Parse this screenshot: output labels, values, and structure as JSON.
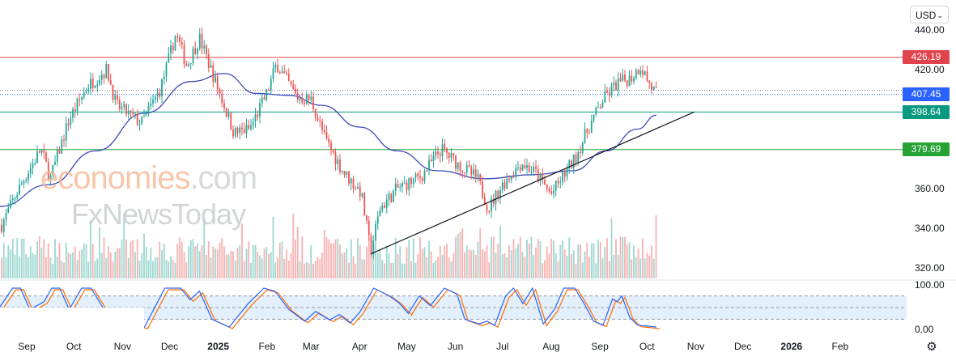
{
  "header": {
    "currency": "USD"
  },
  "watermark": {
    "brand_top": "economies",
    "brand_top_suffix": ".com",
    "brand_bottom": "FxNewsToday"
  },
  "price_labels": [
    {
      "value": "426.19",
      "color": "#e0434b"
    },
    {
      "value": "407.45",
      "color": "#2962ff"
    },
    {
      "value": "398.64",
      "color": "#089981"
    },
    {
      "value": "379.69",
      "color": "#26a334"
    }
  ],
  "y_axis_ticks": [
    "440.00",
    "420.00",
    "360.00",
    "340.00",
    "320.00"
  ],
  "osc_axis_ticks": [
    "100.00",
    "0.00"
  ],
  "x_axis_ticks": [
    {
      "label": "Sep",
      "bold": false
    },
    {
      "label": "Oct",
      "bold": false
    },
    {
      "label": "Nov",
      "bold": false
    },
    {
      "label": "Dec",
      "bold": false
    },
    {
      "label": "2025",
      "bold": true
    },
    {
      "label": "Feb",
      "bold": false
    },
    {
      "label": "Mar",
      "bold": false
    },
    {
      "label": "Apr",
      "bold": false
    },
    {
      "label": "May",
      "bold": false
    },
    {
      "label": "Jun",
      "bold": false
    },
    {
      "label": "Jul",
      "bold": false
    },
    {
      "label": "Aug",
      "bold": false
    },
    {
      "label": "Sep",
      "bold": false
    },
    {
      "label": "Oct",
      "bold": false
    },
    {
      "label": "Nov",
      "bold": false
    },
    {
      "label": "Dec",
      "bold": false
    },
    {
      "label": "2026",
      "bold": true
    },
    {
      "label": "Feb",
      "bold": false
    }
  ],
  "colors": {
    "up": "#26a69a",
    "down": "#ef5350",
    "ma": "#3f48b8",
    "resistance": "#e0434b",
    "support1": "#089981",
    "support2": "#26a334",
    "trendline": "#131722",
    "stoch_k": "#2962ff",
    "stoch_d": "#ff6d00",
    "osc_band": "#e3f0fb"
  },
  "chart_data": {
    "type": "candlestick",
    "price_axis": {
      "ylim": [
        315,
        448
      ],
      "ticks": [
        320,
        340,
        360,
        420,
        440
      ]
    },
    "horizontal_levels": [
      {
        "label": "426.19",
        "value": 426.19,
        "role": "resistance"
      },
      {
        "label": "398.64",
        "value": 398.64,
        "role": "support"
      },
      {
        "label": "379.69",
        "value": 379.69,
        "role": "support"
      }
    ],
    "last_price": {
      "label": "407.45",
      "value": 407.45
    },
    "trendline": [
      {
        "date": "2025-04-08",
        "price": 327
      },
      {
        "date": "2025-10-31",
        "price": 398.6
      }
    ],
    "price_path": [
      [
        "2024-08-15",
        340
      ],
      [
        "2024-08-27",
        360
      ],
      [
        "2024-09-10",
        380
      ],
      [
        "2024-09-16",
        365
      ],
      [
        "2024-09-28",
        395
      ],
      [
        "2024-10-10",
        412
      ],
      [
        "2024-10-22",
        420
      ],
      [
        "2024-10-28",
        402
      ],
      [
        "2024-11-13",
        393
      ],
      [
        "2024-11-25",
        410
      ],
      [
        "2024-12-05",
        438
      ],
      [
        "2024-12-12",
        422
      ],
      [
        "2024-12-20",
        436
      ],
      [
        "2025-01-01",
        410
      ],
      [
        "2025-01-11",
        388
      ],
      [
        "2025-01-21",
        390
      ],
      [
        "2025-02-01",
        408
      ],
      [
        "2025-02-07",
        423
      ],
      [
        "2025-02-20",
        406
      ],
      [
        "2025-03-01",
        405
      ],
      [
        "2025-03-10",
        385
      ],
      [
        "2025-03-22",
        368
      ],
      [
        "2025-04-02",
        358
      ],
      [
        "2025-04-08",
        328
      ],
      [
        "2025-04-14",
        350
      ],
      [
        "2025-04-25",
        360
      ],
      [
        "2025-05-10",
        366
      ],
      [
        "2025-05-23",
        380
      ],
      [
        "2025-06-03",
        372
      ],
      [
        "2025-06-15",
        365
      ],
      [
        "2025-06-22",
        350
      ],
      [
        "2025-07-01",
        362
      ],
      [
        "2025-07-13",
        373
      ],
      [
        "2025-07-22",
        368
      ],
      [
        "2025-08-01",
        357
      ],
      [
        "2025-08-10",
        368
      ],
      [
        "2025-08-16",
        375
      ],
      [
        "2025-08-25",
        391
      ],
      [
        "2025-09-03",
        405
      ],
      [
        "2025-09-12",
        413
      ],
      [
        "2025-09-21",
        416
      ],
      [
        "2025-09-27",
        422
      ],
      [
        "2025-10-03",
        412
      ],
      [
        "2025-10-07",
        408
      ]
    ],
    "moving_average": [
      [
        "2024-08-15",
        351
      ],
      [
        "2024-09-15",
        362
      ],
      [
        "2024-10-15",
        379
      ],
      [
        "2024-11-15",
        398
      ],
      [
        "2024-12-15",
        414
      ],
      [
        "2025-01-05",
        418
      ],
      [
        "2025-01-25",
        408
      ],
      [
        "2025-02-15",
        407
      ],
      [
        "2025-03-08",
        402
      ],
      [
        "2025-04-01",
        391
      ],
      [
        "2025-04-25",
        379
      ],
      [
        "2025-05-20",
        369
      ],
      [
        "2025-06-20",
        365
      ],
      [
        "2025-07-20",
        367
      ],
      [
        "2025-08-15",
        369
      ],
      [
        "2025-09-05",
        379
      ],
      [
        "2025-09-25",
        390
      ],
      [
        "2025-10-07",
        397
      ]
    ],
    "oscillator": {
      "ylim": [
        0,
        100
      ],
      "band": [
        20,
        80
      ],
      "k": [
        [
          "2024-08-15",
          52
        ],
        [
          "2024-08-23",
          100
        ],
        [
          "2024-08-28",
          100
        ],
        [
          "2024-09-03",
          45
        ],
        [
          "2024-09-12",
          65
        ],
        [
          "2024-09-17",
          100
        ],
        [
          "2024-09-22",
          100
        ],
        [
          "2024-09-28",
          45
        ],
        [
          "2024-10-06",
          100
        ],
        [
          "2024-10-12",
          100
        ],
        [
          "2024-10-24",
          20
        ],
        [
          "2024-11-15",
          0
        ],
        [
          "2024-11-28",
          100
        ],
        [
          "2024-12-08",
          100
        ],
        [
          "2024-12-14",
          70
        ],
        [
          "2024-12-20",
          92
        ],
        [
          "2024-12-28",
          20
        ],
        [
          "2025-01-08",
          0
        ],
        [
          "2025-01-20",
          60
        ],
        [
          "2025-01-30",
          100
        ],
        [
          "2025-02-06",
          92
        ],
        [
          "2025-02-15",
          45
        ],
        [
          "2025-02-25",
          15
        ],
        [
          "2025-03-04",
          40
        ],
        [
          "2025-03-13",
          18
        ],
        [
          "2025-03-19",
          32
        ],
        [
          "2025-03-26",
          10
        ],
        [
          "2025-04-01",
          38
        ],
        [
          "2025-04-10",
          100
        ],
        [
          "2025-04-20",
          80
        ],
        [
          "2025-04-26",
          62
        ],
        [
          "2025-05-02",
          35
        ],
        [
          "2025-05-09",
          80
        ],
        [
          "2025-05-16",
          55
        ],
        [
          "2025-05-25",
          100
        ],
        [
          "2025-06-02",
          85
        ],
        [
          "2025-06-07",
          20
        ],
        [
          "2025-06-16",
          8
        ],
        [
          "2025-06-21",
          15
        ],
        [
          "2025-06-26",
          4
        ],
        [
          "2025-07-03",
          80
        ],
        [
          "2025-07-08",
          100
        ],
        [
          "2025-07-14",
          60
        ],
        [
          "2025-07-20",
          100
        ],
        [
          "2025-07-27",
          8
        ],
        [
          "2025-08-03",
          45
        ],
        [
          "2025-08-09",
          100
        ],
        [
          "2025-08-16",
          100
        ],
        [
          "2025-08-22",
          60
        ],
        [
          "2025-08-28",
          15
        ],
        [
          "2025-09-03",
          5
        ],
        [
          "2025-09-09",
          72
        ],
        [
          "2025-09-12",
          65
        ],
        [
          "2025-09-15",
          80
        ],
        [
          "2025-09-20",
          25
        ],
        [
          "2025-09-25",
          5
        ],
        [
          "2025-10-07",
          0
        ]
      ]
    }
  }
}
